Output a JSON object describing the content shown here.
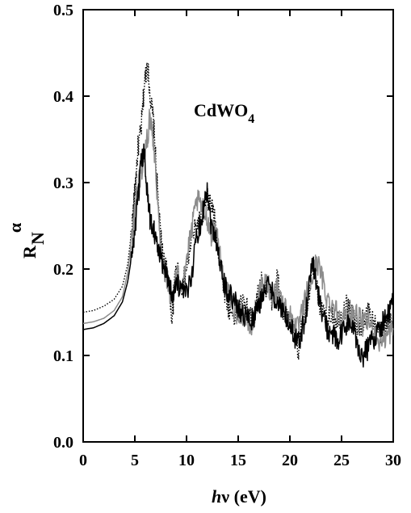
{
  "chart_data": {
    "type": "line",
    "title": "",
    "annotation": {
      "text": "CdWO",
      "subscript": "4"
    },
    "xlabel": {
      "italic": "h",
      "rest": "ν (eV)"
    },
    "ylabel": {
      "main": "R",
      "sub": "N",
      "sup": "α"
    },
    "xlim": [
      0,
      30
    ],
    "ylim": [
      0.0,
      0.5
    ],
    "x_ticks": [
      "0",
      "5",
      "10",
      "15",
      "20",
      "25",
      "30"
    ],
    "y_ticks": [
      "0.0",
      "0.1",
      "0.2",
      "0.3",
      "0.4",
      "0.5"
    ],
    "grid": false,
    "series": [
      {
        "style": "dotted",
        "color": "#000000",
        "points": [
          [
            0,
            0.15
          ],
          [
            1,
            0.152
          ],
          [
            2,
            0.157
          ],
          [
            3,
            0.165
          ],
          [
            3.8,
            0.18
          ],
          [
            4.3,
            0.205
          ],
          [
            4.7,
            0.245
          ],
          [
            5.0,
            0.29
          ],
          [
            5.3,
            0.34
          ],
          [
            5.6,
            0.36
          ],
          [
            5.9,
            0.41
          ],
          [
            6.2,
            0.44
          ],
          [
            6.5,
            0.4
          ],
          [
            6.8,
            0.37
          ],
          [
            7.1,
            0.31
          ],
          [
            7.4,
            0.25
          ],
          [
            7.7,
            0.215
          ],
          [
            8.0,
            0.2
          ],
          [
            8.3,
            0.19
          ],
          [
            8.6,
            0.14
          ],
          [
            9.0,
            0.21
          ],
          [
            9.5,
            0.175
          ],
          [
            10.0,
            0.2
          ],
          [
            10.5,
            0.235
          ],
          [
            11.0,
            0.25
          ],
          [
            11.5,
            0.26
          ],
          [
            12.0,
            0.28
          ],
          [
            12.4,
            0.275
          ],
          [
            12.8,
            0.25
          ],
          [
            13.2,
            0.21
          ],
          [
            13.7,
            0.175
          ],
          [
            14.2,
            0.15
          ],
          [
            14.8,
            0.145
          ],
          [
            15.3,
            0.16
          ],
          [
            15.8,
            0.155
          ],
          [
            16.3,
            0.14
          ],
          [
            16.8,
            0.165
          ],
          [
            17.3,
            0.185
          ],
          [
            17.8,
            0.175
          ],
          [
            18.3,
            0.165
          ],
          [
            18.8,
            0.19
          ],
          [
            19.3,
            0.15
          ],
          [
            19.8,
            0.14
          ],
          [
            20.3,
            0.13
          ],
          [
            20.8,
            0.1
          ],
          [
            21.2,
            0.14
          ],
          [
            21.7,
            0.165
          ],
          [
            22.2,
            0.2
          ],
          [
            22.6,
            0.175
          ],
          [
            23.1,
            0.15
          ],
          [
            23.6,
            0.14
          ],
          [
            24.1,
            0.15
          ],
          [
            24.6,
            0.14
          ],
          [
            25.1,
            0.15
          ],
          [
            25.6,
            0.16
          ],
          [
            26.1,
            0.145
          ],
          [
            26.6,
            0.13
          ],
          [
            27.1,
            0.14
          ],
          [
            27.6,
            0.15
          ],
          [
            28.1,
            0.14
          ],
          [
            28.6,
            0.125
          ],
          [
            29.1,
            0.13
          ],
          [
            29.6,
            0.14
          ],
          [
            30,
            0.15
          ]
        ]
      },
      {
        "style": "solid",
        "color": "#8c8c8c",
        "points": [
          [
            0,
            0.137
          ],
          [
            1,
            0.139
          ],
          [
            2,
            0.143
          ],
          [
            3,
            0.152
          ],
          [
            3.8,
            0.168
          ],
          [
            4.3,
            0.195
          ],
          [
            4.7,
            0.235
          ],
          [
            5.0,
            0.27
          ],
          [
            5.3,
            0.3
          ],
          [
            5.6,
            0.31
          ],
          [
            5.9,
            0.33
          ],
          [
            6.2,
            0.35
          ],
          [
            6.5,
            0.38
          ],
          [
            6.8,
            0.35
          ],
          [
            7.1,
            0.3
          ],
          [
            7.4,
            0.24
          ],
          [
            7.7,
            0.205
          ],
          [
            8.0,
            0.195
          ],
          [
            8.3,
            0.18
          ],
          [
            8.6,
            0.16
          ],
          [
            9.0,
            0.195
          ],
          [
            9.5,
            0.185
          ],
          [
            10.0,
            0.21
          ],
          [
            10.5,
            0.245
          ],
          [
            11.0,
            0.28
          ],
          [
            11.5,
            0.27
          ],
          [
            12.0,
            0.26
          ],
          [
            12.4,
            0.24
          ],
          [
            12.8,
            0.25
          ],
          [
            13.2,
            0.22
          ],
          [
            13.7,
            0.18
          ],
          [
            14.2,
            0.165
          ],
          [
            14.8,
            0.15
          ],
          [
            15.3,
            0.15
          ],
          [
            15.8,
            0.14
          ],
          [
            16.3,
            0.13
          ],
          [
            16.8,
            0.16
          ],
          [
            17.3,
            0.18
          ],
          [
            17.8,
            0.185
          ],
          [
            18.3,
            0.17
          ],
          [
            18.8,
            0.18
          ],
          [
            19.3,
            0.16
          ],
          [
            19.8,
            0.15
          ],
          [
            20.3,
            0.14
          ],
          [
            20.8,
            0.13
          ],
          [
            21.2,
            0.15
          ],
          [
            21.7,
            0.175
          ],
          [
            22.2,
            0.19
          ],
          [
            22.6,
            0.21
          ],
          [
            23.1,
            0.19
          ],
          [
            23.6,
            0.165
          ],
          [
            24.1,
            0.16
          ],
          [
            24.6,
            0.15
          ],
          [
            25.1,
            0.145
          ],
          [
            25.6,
            0.14
          ],
          [
            26.1,
            0.15
          ],
          [
            26.6,
            0.145
          ],
          [
            27.1,
            0.135
          ],
          [
            27.6,
            0.14
          ],
          [
            28.1,
            0.13
          ],
          [
            28.6,
            0.115
          ],
          [
            29.1,
            0.12
          ],
          [
            29.6,
            0.125
          ],
          [
            30,
            0.13
          ]
        ]
      },
      {
        "style": "solid",
        "color": "#000000",
        "points": [
          [
            0,
            0.13
          ],
          [
            1,
            0.132
          ],
          [
            2,
            0.137
          ],
          [
            3,
            0.146
          ],
          [
            3.8,
            0.162
          ],
          [
            4.3,
            0.185
          ],
          [
            4.7,
            0.215
          ],
          [
            5.0,
            0.245
          ],
          [
            5.3,
            0.28
          ],
          [
            5.6,
            0.32
          ],
          [
            5.9,
            0.335
          ],
          [
            6.2,
            0.29
          ],
          [
            6.5,
            0.255
          ],
          [
            6.8,
            0.25
          ],
          [
            7.1,
            0.23
          ],
          [
            7.4,
            0.215
          ],
          [
            7.7,
            0.205
          ],
          [
            8.0,
            0.2
          ],
          [
            8.3,
            0.185
          ],
          [
            8.6,
            0.17
          ],
          [
            9.0,
            0.185
          ],
          [
            9.5,
            0.175
          ],
          [
            10.0,
            0.17
          ],
          [
            10.5,
            0.195
          ],
          [
            11.0,
            0.24
          ],
          [
            11.5,
            0.26
          ],
          [
            12.0,
            0.295
          ],
          [
            12.4,
            0.25
          ],
          [
            12.8,
            0.24
          ],
          [
            13.2,
            0.21
          ],
          [
            13.7,
            0.18
          ],
          [
            14.2,
            0.17
          ],
          [
            14.8,
            0.16
          ],
          [
            15.3,
            0.15
          ],
          [
            15.8,
            0.145
          ],
          [
            16.3,
            0.14
          ],
          [
            16.8,
            0.15
          ],
          [
            17.3,
            0.17
          ],
          [
            17.8,
            0.18
          ],
          [
            18.3,
            0.175
          ],
          [
            18.8,
            0.16
          ],
          [
            19.3,
            0.15
          ],
          [
            19.8,
            0.14
          ],
          [
            20.3,
            0.125
          ],
          [
            20.8,
            0.115
          ],
          [
            21.2,
            0.13
          ],
          [
            21.7,
            0.16
          ],
          [
            22.2,
            0.215
          ],
          [
            22.6,
            0.18
          ],
          [
            23.1,
            0.15
          ],
          [
            23.6,
            0.13
          ],
          [
            24.1,
            0.125
          ],
          [
            24.6,
            0.115
          ],
          [
            25.1,
            0.125
          ],
          [
            25.6,
            0.14
          ],
          [
            26.1,
            0.13
          ],
          [
            26.6,
            0.11
          ],
          [
            27.1,
            0.1
          ],
          [
            27.6,
            0.11
          ],
          [
            28.1,
            0.12
          ],
          [
            28.6,
            0.13
          ],
          [
            29.1,
            0.14
          ],
          [
            29.6,
            0.15
          ],
          [
            30,
            0.16
          ]
        ]
      }
    ]
  }
}
